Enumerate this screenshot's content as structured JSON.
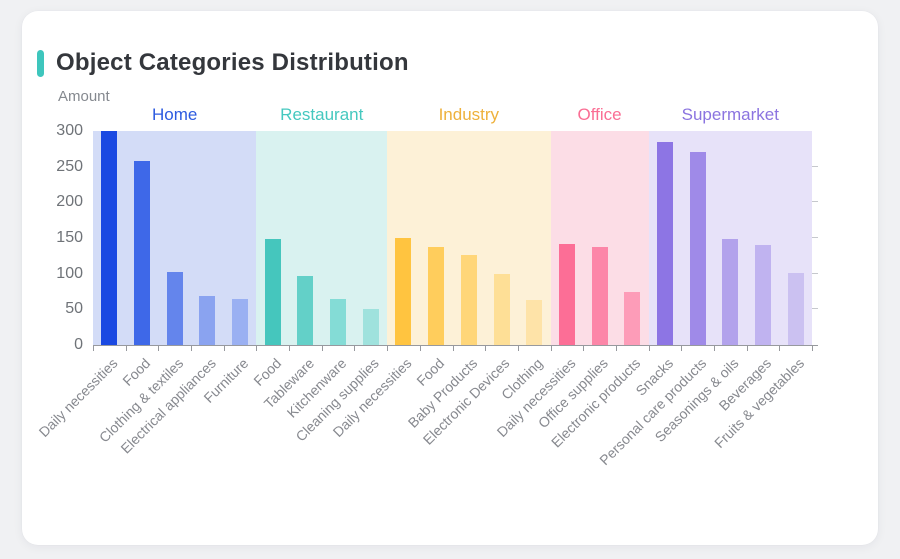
{
  "page": {
    "background": "#f0f1f3",
    "card_background": "#ffffff"
  },
  "header": {
    "title": "Object Categories Distribution",
    "accent_color": "#3ec6bd"
  },
  "chart_data": {
    "type": "bar",
    "title": "Object Categories Distribution",
    "xlabel": "",
    "ylabel": "Amount",
    "ylim": [
      0,
      300
    ],
    "yticks": [
      0,
      50,
      100,
      150,
      200,
      250,
      300
    ],
    "grid": false,
    "legend_position": "none",
    "group_header_position": "top",
    "axis_color": "#97999e",
    "groups": [
      {
        "name": "Home",
        "label_color": "#2d5be0",
        "band_color": "#d3dcf7",
        "bars": [
          {
            "label": "Daily necessities",
            "value": 300,
            "color": "#1a49e2"
          },
          {
            "label": "Food",
            "value": 258,
            "color": "#3e68e8"
          },
          {
            "label": "Clothing & textiles",
            "value": 103,
            "color": "#6485ec"
          },
          {
            "label": "Electrical appliances",
            "value": 69,
            "color": "#8aa3f0"
          },
          {
            "label": "Furniture",
            "value": 64,
            "color": "#9ab0f2"
          }
        ]
      },
      {
        "name": "Restaurant",
        "label_color": "#45c8bf",
        "band_color": "#d9f2f0",
        "bars": [
          {
            "label": "Food",
            "value": 148,
            "color": "#45c6bd"
          },
          {
            "label": "Tableware",
            "value": 97,
            "color": "#63d0c8"
          },
          {
            "label": "Kitchenware",
            "value": 65,
            "color": "#84dcd6"
          },
          {
            "label": "Cleaning supplies",
            "value": 51,
            "color": "#9fe2dd"
          }
        ]
      },
      {
        "name": "Industry",
        "label_color": "#eeb13c",
        "band_color": "#fdf1d7",
        "bars": [
          {
            "label": "Daily necessities",
            "value": 150,
            "color": "#ffc440"
          },
          {
            "label": "Food",
            "value": 138,
            "color": "#ffcd5c"
          },
          {
            "label": "Baby Products",
            "value": 126,
            "color": "#ffd679"
          },
          {
            "label": "Electronic Devices",
            "value": 99,
            "color": "#fedf96"
          },
          {
            "label": "Clothing",
            "value": 63,
            "color": "#fee3a8"
          }
        ]
      },
      {
        "name": "Office",
        "label_color": "#fa6e94",
        "band_color": "#fcdde6",
        "bars": [
          {
            "label": "Daily necessities",
            "value": 142,
            "color": "#fc6e96"
          },
          {
            "label": "Office supplies",
            "value": 138,
            "color": "#fc86a8"
          },
          {
            "label": "Electronic products",
            "value": 75,
            "color": "#fd9cb8"
          }
        ]
      },
      {
        "name": "Supermarket",
        "label_color": "#8b74e0",
        "band_color": "#e7e2f9",
        "bars": [
          {
            "label": "Snacks",
            "value": 284,
            "color": "#8d75e4"
          },
          {
            "label": "Personal care products",
            "value": 271,
            "color": "#9f8ae8"
          },
          {
            "label": "Seasonings & oils",
            "value": 148,
            "color": "#b2a2ec"
          },
          {
            "label": "Beverages",
            "value": 140,
            "color": "#c0b3f0"
          },
          {
            "label": "Fruits & vegetables",
            "value": 101,
            "color": "#cbc1f1"
          }
        ]
      }
    ]
  }
}
